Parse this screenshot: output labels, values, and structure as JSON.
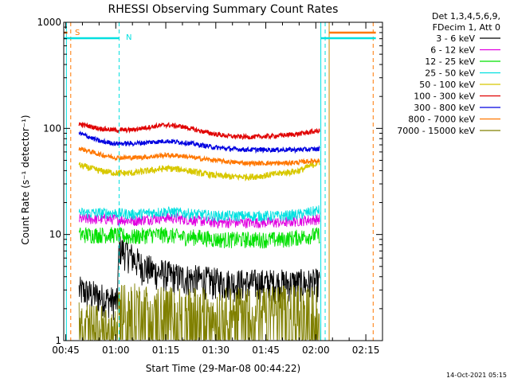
{
  "colors": {
    "background": "#ffffff",
    "axes": "#000000",
    "band_3_6": "#000000",
    "band_6_12": "#e000e0",
    "band_12_25": "#00e000",
    "band_25_50": "#00e0e0",
    "band_50_100": "#d8c800",
    "band_100_300": "#e00000",
    "band_300_800": "#0000e0",
    "band_800_7000": "#ff7700",
    "band_7000_15000": "#808000"
  },
  "flags": {
    "s_label": "S",
    "n_label": "N"
  },
  "stamp": "14-Oct-2021 05:15",
  "legend": {
    "header_line1": "Det 1,3,4,5,6,9,",
    "header_line2": "FDecim 1, Att 0",
    "entries": [
      {
        "label": "3 - 6 keV",
        "color": "#000000"
      },
      {
        "label": "6 - 12 keV",
        "color": "#e000e0"
      },
      {
        "label": "12 - 25 keV",
        "color": "#00e000"
      },
      {
        "label": "25 - 50 keV",
        "color": "#00e0e0"
      },
      {
        "label": "50 - 100 keV",
        "color": "#d8c800"
      },
      {
        "label": "100 - 300 keV",
        "color": "#e00000"
      },
      {
        "label": "300 - 800 keV",
        "color": "#0000e0"
      },
      {
        "label": "800 - 7000 keV",
        "color": "#ff7700"
      },
      {
        "label": "7000 - 15000 keV",
        "color": "#808000"
      }
    ]
  },
  "chart_data": {
    "type": "line",
    "title": "RHESSI Observing Summary Count Rates",
    "xlabel": "Start Time (29-Mar-08 00:44:22)",
    "ylabel": "Count Rate (s⁻¹ detector⁻¹)",
    "y_scale": "log",
    "xlim_minutes": [
      44.4,
      140
    ],
    "ylim": [
      1,
      1000
    ],
    "x_ticks": [
      {
        "minute": 45,
        "label": "00:45"
      },
      {
        "minute": 60,
        "label": "01:00"
      },
      {
        "minute": 75,
        "label": "01:15"
      },
      {
        "minute": 90,
        "label": "01:30"
      },
      {
        "minute": 105,
        "label": "01:45"
      },
      {
        "minute": 120,
        "label": "02:00"
      },
      {
        "minute": 135,
        "label": "02:15"
      }
    ],
    "y_ticks": [
      {
        "value": 1,
        "label": "1"
      },
      {
        "value": 10,
        "label": "10"
      },
      {
        "value": 100,
        "label": "100"
      },
      {
        "value": 1000,
        "label": "1000"
      }
    ],
    "x_axis_unit": "minutes after 00:00 UT",
    "series": [
      {
        "name": "3 - 6 keV",
        "color": "#000000",
        "x": [
          49,
          57,
          60.5,
          61,
          64,
          68,
          72,
          78,
          85,
          90,
          95,
          100,
          105,
          110,
          115,
          121.2
        ],
        "y": [
          3.0,
          2.5,
          2.3,
          7.5,
          6.5,
          5.0,
          4.5,
          4.0,
          3.8,
          3.6,
          3.5,
          3.5,
          3.5,
          3.5,
          3.5,
          3.5
        ]
      },
      {
        "name": "6 - 12 keV",
        "color": "#e000e0",
        "x": [
          49,
          55,
          60,
          65,
          70,
          75,
          80,
          85,
          90,
          95,
          100,
          105,
          110,
          115,
          121.2
        ],
        "y": [
          14,
          14,
          14,
          13.5,
          14,
          14.5,
          14,
          13.5,
          13,
          13,
          13,
          13,
          13,
          13.5,
          14
        ]
      },
      {
        "name": "12 - 25 keV",
        "color": "#00e000",
        "x": [
          49,
          55,
          60,
          65,
          70,
          75,
          80,
          85,
          90,
          95,
          100,
          105,
          110,
          115,
          121.2
        ],
        "y": [
          10,
          10,
          10,
          9.5,
          10,
          10,
          9.5,
          9.5,
          9,
          9,
          9,
          9,
          9,
          9.5,
          10
        ]
      },
      {
        "name": "25 - 50 keV",
        "color": "#00e0e0",
        "x": [
          49,
          55,
          60,
          65,
          70,
          75,
          80,
          85,
          90,
          95,
          100,
          105,
          110,
          115,
          121.2
        ],
        "y": [
          16,
          16,
          16,
          15.5,
          16,
          16.5,
          16,
          15.5,
          15,
          15,
          15,
          15,
          15,
          15.5,
          17
        ]
      },
      {
        "name": "50 - 100 keV",
        "color": "#d8c800",
        "x": [
          49,
          55,
          60,
          65,
          70,
          75,
          80,
          85,
          90,
          95,
          100,
          105,
          110,
          115,
          121.2
        ],
        "y": [
          45,
          40,
          38,
          38,
          40,
          42,
          41,
          38,
          36,
          35,
          35,
          36,
          38,
          40,
          48
        ]
      },
      {
        "name": "100 - 300 keV",
        "color": "#e00000",
        "x": [
          49,
          55,
          60,
          65,
          70,
          75,
          80,
          85,
          90,
          95,
          100,
          105,
          110,
          115,
          121.2
        ],
        "y": [
          110,
          100,
          96,
          97,
          103,
          108,
          104,
          95,
          88,
          84,
          83,
          84,
          86,
          89,
          95
        ]
      },
      {
        "name": "300 - 800 keV",
        "color": "#0000e0",
        "x": [
          49,
          55,
          60,
          65,
          70,
          75,
          80,
          85,
          90,
          95,
          100,
          105,
          110,
          115,
          121.2
        ],
        "y": [
          90,
          76,
          72,
          72,
          74,
          76,
          74,
          70,
          66,
          64,
          63,
          63,
          63,
          63,
          64
        ]
      },
      {
        "name": "800 - 7000 keV",
        "color": "#ff7700",
        "x": [
          49,
          55,
          60,
          65,
          70,
          75,
          80,
          85,
          90,
          95,
          100,
          105,
          110,
          115,
          121.2
        ],
        "y": [
          65,
          57,
          53,
          53,
          54,
          56,
          55,
          52,
          50,
          48,
          47,
          47,
          47,
          48,
          50
        ]
      },
      {
        "name": "7000 - 15000 keV",
        "color": "#808000",
        "x": [
          49,
          55,
          60.5,
          61,
          70,
          80,
          90,
          100,
          110,
          121.2
        ],
        "y": [
          1.6,
          1.5,
          1.5,
          2.5,
          2.3,
          2.2,
          2.2,
          2.2,
          2.3,
          2.5
        ]
      }
    ],
    "markers": {
      "cyan_solid_x": [
        45.2,
        121.5
      ],
      "cyan_dash_x": [
        61,
        122.8
      ],
      "orange_solid_x": [
        124
      ],
      "orange_dash_x": [
        46.5,
        137.2
      ],
      "top_cyan_segments": [
        [
          44.5,
          61
        ],
        [
          121.5,
          138
        ]
      ],
      "top_orange_segments": [
        [
          44.5,
          45.5
        ],
        [
          124,
          138
        ]
      ]
    }
  }
}
